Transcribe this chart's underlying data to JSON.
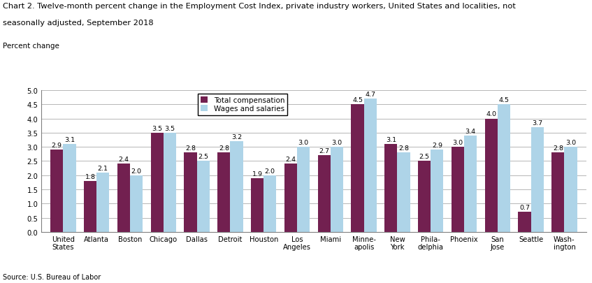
{
  "title_line1": "Chart 2. Twelve-month percent change in the Employment Cost Index, private industry workers, United States and localities, not",
  "title_line2": "seasonally adjusted, September 2018",
  "ylabel": "Percent change",
  "source": "Source: U.S. Bureau of Labor",
  "categories": [
    "United\nStates",
    "Atlanta",
    "Boston",
    "Chicago",
    "Dallas",
    "Detroit",
    "Houston",
    "Los\nAngeles",
    "Miami",
    "Minne-\napolis",
    "New\nYork",
    "Phila-\ndelphia",
    "Phoenix",
    "San\nJose",
    "Seattle",
    "Wash-\nington"
  ],
  "total_compensation": [
    2.9,
    1.8,
    2.4,
    3.5,
    2.8,
    2.8,
    1.9,
    2.4,
    2.7,
    4.5,
    3.1,
    2.5,
    3.0,
    4.0,
    0.7,
    2.8
  ],
  "wages_and_salaries": [
    3.1,
    2.1,
    2.0,
    3.5,
    2.5,
    3.2,
    2.0,
    3.0,
    3.0,
    4.7,
    2.8,
    2.9,
    3.4,
    4.5,
    3.7,
    3.0
  ],
  "color_total": "#722050",
  "color_wages": "#aed4e8",
  "ylim": [
    0.0,
    5.0
  ],
  "yticks": [
    0.0,
    0.5,
    1.0,
    1.5,
    2.0,
    2.5,
    3.0,
    3.5,
    4.0,
    4.5,
    5.0
  ],
  "legend_labels": [
    "Total compensation",
    "Wages and salaries"
  ],
  "bar_width": 0.38,
  "label_fontsize": 6.8,
  "tick_fontsize": 7.2,
  "title_fontsize": 8.2,
  "ylabel_fontsize": 7.5,
  "source_fontsize": 7.0,
  "legend_fontsize": 7.5
}
